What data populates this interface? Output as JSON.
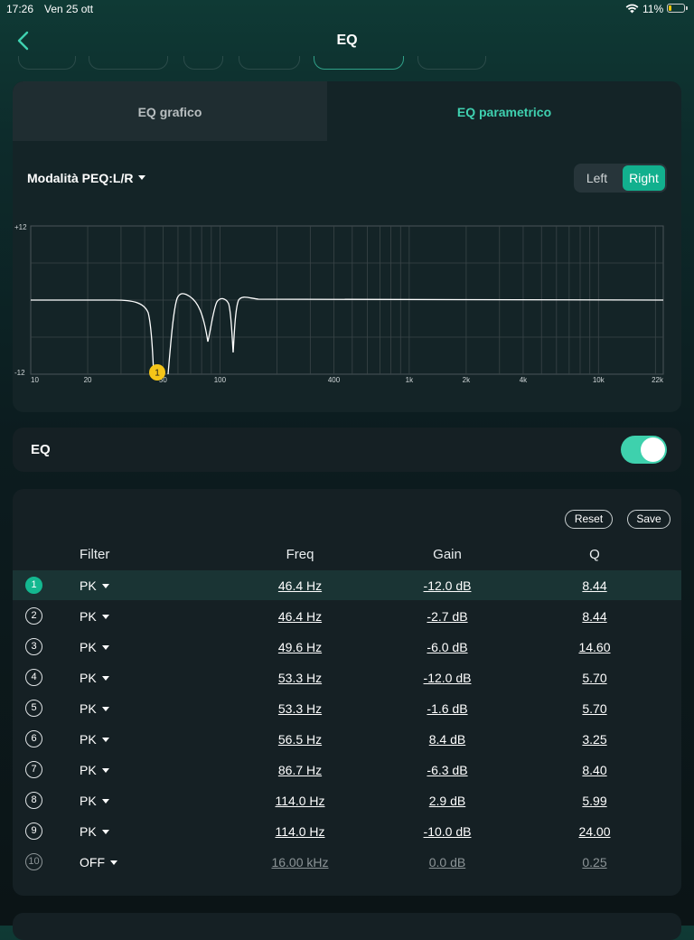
{
  "status": {
    "time": "17:26",
    "date": "Ven 25 ott",
    "battery": "11%",
    "battery_level": 0.11
  },
  "header": {
    "title": "EQ"
  },
  "tabs": {
    "graphic": "EQ grafico",
    "parametric": "EQ parametrico",
    "active": "parametric"
  },
  "peq": {
    "mode_label": "Modalità PEQ:L/R",
    "channel_left": "Left",
    "channel_right": "Right",
    "active_channel": "Right"
  },
  "graph": {
    "y_top": "+12",
    "y_bottom": "-12",
    "x_ticks": [
      "10",
      "20",
      "50",
      "100",
      "400",
      "1k",
      "2k",
      "4k",
      "10k",
      "22k"
    ],
    "marker_label": "1",
    "colors": {
      "curve": "#ffffff",
      "marker": "#f5c518",
      "grid": "#3a4548"
    }
  },
  "eq_toggle": {
    "label": "EQ",
    "enabled": true
  },
  "filters": {
    "reset_label": "Reset",
    "save_label": "Save",
    "headers": {
      "filter": "Filter",
      "freq": "Freq",
      "gain": "Gain",
      "q": "Q"
    },
    "rows": [
      {
        "n": "1",
        "type": "PK",
        "freq": "46.4 Hz",
        "gain": "-12.0 dB",
        "q": "8.44"
      },
      {
        "n": "2",
        "type": "PK",
        "freq": "46.4 Hz",
        "gain": "-2.7 dB",
        "q": "8.44"
      },
      {
        "n": "3",
        "type": "PK",
        "freq": "49.6 Hz",
        "gain": "-6.0 dB",
        "q": "14.60"
      },
      {
        "n": "4",
        "type": "PK",
        "freq": "53.3 Hz",
        "gain": "-12.0 dB",
        "q": "5.70"
      },
      {
        "n": "5",
        "type": "PK",
        "freq": "53.3 Hz",
        "gain": "-1.6 dB",
        "q": "5.70"
      },
      {
        "n": "6",
        "type": "PK",
        "freq": "56.5 Hz",
        "gain": "8.4 dB",
        "q": "3.25"
      },
      {
        "n": "7",
        "type": "PK",
        "freq": "86.7 Hz",
        "gain": "-6.3 dB",
        "q": "8.40"
      },
      {
        "n": "8",
        "type": "PK",
        "freq": "114.0 Hz",
        "gain": "2.9 dB",
        "q": "5.99"
      },
      {
        "n": "9",
        "type": "PK",
        "freq": "114.0 Hz",
        "gain": "-10.0 dB",
        "q": "24.00"
      },
      {
        "n": "10",
        "type": "OFF",
        "freq": "16.00 kHz",
        "gain": "0.0 dB",
        "q": "0.25"
      }
    ]
  },
  "colors": {
    "accent": "#3fd1b0",
    "accent_dark": "#12b08e",
    "marker": "#f5c518"
  }
}
